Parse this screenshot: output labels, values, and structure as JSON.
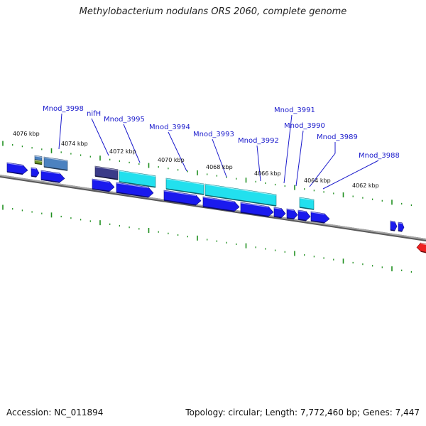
{
  "title": "Methylobacterium nodulans ORS 2060, complete genome",
  "footer": {
    "accession": "Accession: NC_011894",
    "summary": "Topology: circular; Length: 7,772,460 bp; Genes: 7,447"
  },
  "kbp_labels": [
    "4076 kbp",
    "4074 kbp",
    "4072 kbp",
    "4070 kbp",
    "4068 kbp",
    "4066 kbp",
    "4064 kbp",
    "4062 kbp"
  ],
  "gene_labels": [
    "Mnod_3998",
    "nifH",
    "Mnod_3995",
    "Mnod_3994",
    "Mnod_3993",
    "Mnod_3992",
    "Mnod_3991",
    "Mnod_3990",
    "Mnod_3989",
    "Mnod_3988"
  ],
  "colors": {
    "cds_blue": "#1a1aee",
    "rna_cyan": "#22e0ee",
    "steel": "#4c82c0",
    "slate": "#3a3a88",
    "olive": "#6e9a2a",
    "red": "#ee2222",
    "tick_green": "#1f8f1f",
    "backbone": "#808080",
    "label_blue": "#1a1acc"
  }
}
